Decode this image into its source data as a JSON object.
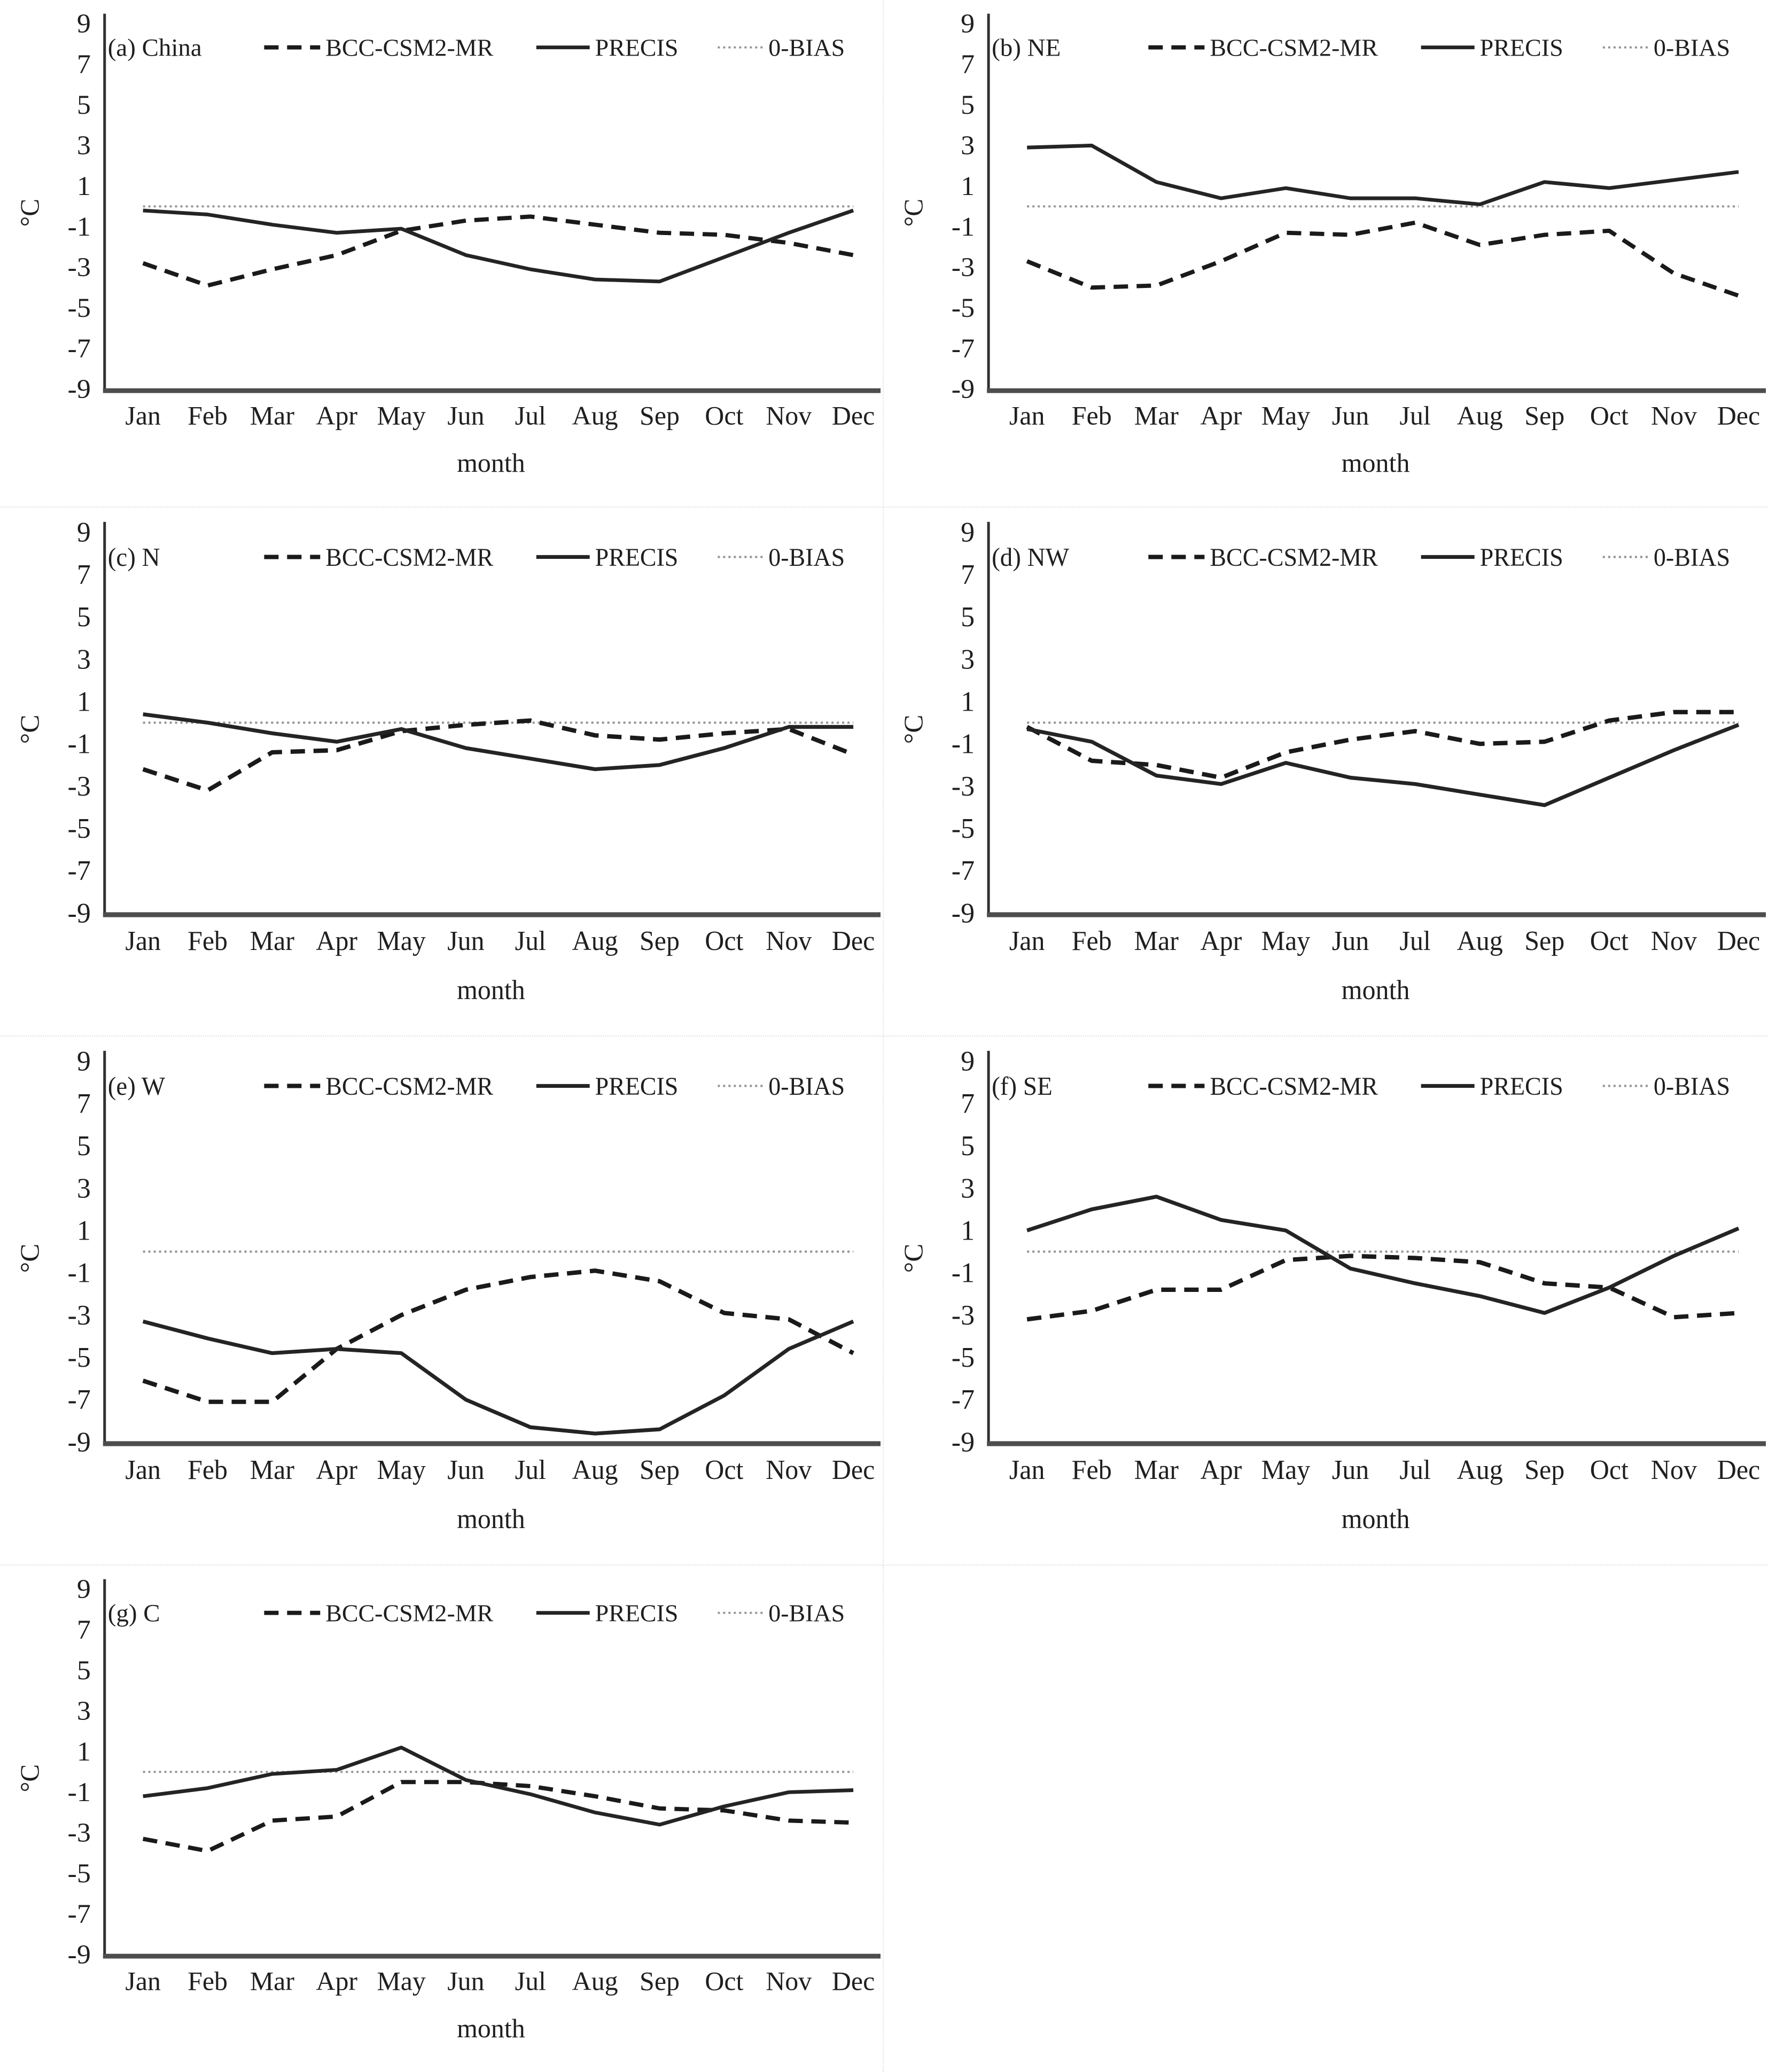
{
  "figure": {
    "ylabel": "°C",
    "xlabel": "month",
    "yticks": [
      9,
      7,
      5,
      3,
      1,
      -1,
      -3,
      -5,
      -7,
      -9
    ],
    "legend_labels": [
      "BCC-CSM2-MR",
      "PRECIS",
      "0-BIAS"
    ],
    "colors": {
      "series_dark": "#1a1a1a",
      "solid_line": "#242424",
      "zero_bias_gray": "#949494",
      "axis_gray": "#4d4d4d",
      "text_dark": "#1f1f1f",
      "cell_border": "#e2e2e2"
    }
  },
  "chart_data": [
    {
      "type": "line",
      "title": "(a) China",
      "xlabel": "month",
      "ylabel": "°C",
      "ylim": [
        -9,
        9
      ],
      "yticks": [
        9,
        7,
        5,
        3,
        1,
        -1,
        -3,
        -5,
        -7,
        -9
      ],
      "legend_position": "top",
      "grid": false,
      "categories": [
        "Jan",
        "Feb",
        "Mar",
        "Apr",
        "May",
        "Jun",
        "Jul",
        "Aug",
        "Sep",
        "Oct",
        "Nov",
        "Dec"
      ],
      "series": [
        {
          "name": "BCC-CSM2-MR",
          "style": "dashed",
          "values": [
            -2.8,
            -3.9,
            -3.1,
            -2.4,
            -1.2,
            -0.7,
            -0.5,
            -0.9,
            -1.3,
            -1.4,
            -1.8,
            -2.4
          ]
        },
        {
          "name": "PRECIS",
          "style": "solid",
          "values": [
            -0.2,
            -0.4,
            -0.9,
            -1.3,
            -1.1,
            -2.4,
            -3.1,
            -3.6,
            -3.7,
            -2.5,
            -1.3,
            -0.2
          ]
        },
        {
          "name": "0-BIAS",
          "style": "dotted",
          "values": [
            0,
            0,
            0,
            0,
            0,
            0,
            0,
            0,
            0,
            0,
            0,
            0
          ]
        }
      ]
    },
    {
      "type": "line",
      "title": "(b) NE",
      "xlabel": "month",
      "ylabel": "°C",
      "ylim": [
        -9,
        9
      ],
      "yticks": [
        9,
        7,
        5,
        3,
        1,
        -1,
        -3,
        -5,
        -7,
        -9
      ],
      "legend_position": "top",
      "grid": false,
      "categories": [
        "Jan",
        "Feb",
        "Mar",
        "Apr",
        "May",
        "Jun",
        "Jul",
        "Aug",
        "Sep",
        "Oct",
        "Nov",
        "Dec"
      ],
      "series": [
        {
          "name": "BCC-CSM2-MR",
          "style": "dashed",
          "values": [
            -2.7,
            -4.0,
            -3.9,
            -2.7,
            -1.3,
            -1.4,
            -0.8,
            -1.9,
            -1.4,
            -1.2,
            -3.3,
            -4.4
          ]
        },
        {
          "name": "PRECIS",
          "style": "solid",
          "values": [
            2.9,
            3.0,
            1.2,
            0.4,
            0.9,
            0.4,
            0.4,
            0.1,
            1.2,
            0.9,
            1.3,
            1.7
          ]
        },
        {
          "name": "0-BIAS",
          "style": "dotted",
          "values": [
            0,
            0,
            0,
            0,
            0,
            0,
            0,
            0,
            0,
            0,
            0,
            0
          ]
        }
      ]
    },
    {
      "type": "line",
      "title": "(c) N",
      "xlabel": "month",
      "ylabel": "°C",
      "ylim": [
        -9,
        9
      ],
      "yticks": [
        9,
        7,
        5,
        3,
        1,
        -1,
        -3,
        -5,
        -7,
        -9
      ],
      "legend_position": "top",
      "grid": false,
      "categories": [
        "Jan",
        "Feb",
        "Mar",
        "Apr",
        "May",
        "Jun",
        "Jul",
        "Aug",
        "Sep",
        "Oct",
        "Nov",
        "Dec"
      ],
      "series": [
        {
          "name": "BCC-CSM2-MR",
          "style": "dashed",
          "values": [
            -2.2,
            -3.2,
            -1.4,
            -1.3,
            -0.4,
            -0.1,
            0.1,
            -0.6,
            -0.8,
            -0.5,
            -0.3,
            -1.5
          ]
        },
        {
          "name": "PRECIS",
          "style": "solid",
          "values": [
            0.4,
            0.0,
            -0.5,
            -0.9,
            -0.3,
            -1.2,
            -1.7,
            -2.2,
            -2.0,
            -1.2,
            -0.2,
            -0.2
          ]
        },
        {
          "name": "0-BIAS",
          "style": "dotted",
          "values": [
            0,
            0,
            0,
            0,
            0,
            0,
            0,
            0,
            0,
            0,
            0,
            0
          ]
        }
      ]
    },
    {
      "type": "line",
      "title": "(d) NW",
      "xlabel": "month",
      "ylabel": "°C",
      "ylim": [
        -9,
        9
      ],
      "yticks": [
        9,
        7,
        5,
        3,
        1,
        -1,
        -3,
        -5,
        -7,
        -9
      ],
      "legend_position": "top",
      "grid": false,
      "categories": [
        "Jan",
        "Feb",
        "Mar",
        "Apr",
        "May",
        "Jun",
        "Jul",
        "Aug",
        "Sep",
        "Oct",
        "Nov",
        "Dec"
      ],
      "series": [
        {
          "name": "BCC-CSM2-MR",
          "style": "dashed",
          "values": [
            -0.2,
            -1.8,
            -2.0,
            -2.6,
            -1.4,
            -0.8,
            -0.4,
            -1.0,
            -0.9,
            0.1,
            0.5,
            0.5
          ]
        },
        {
          "name": "PRECIS",
          "style": "solid",
          "values": [
            -0.3,
            -0.9,
            -2.5,
            -2.9,
            -1.9,
            -2.6,
            -2.9,
            -3.4,
            -3.9,
            -2.6,
            -1.3,
            -0.1
          ]
        },
        {
          "name": "0-BIAS",
          "style": "dotted",
          "values": [
            0,
            0,
            0,
            0,
            0,
            0,
            0,
            0,
            0,
            0,
            0,
            0
          ]
        }
      ]
    },
    {
      "type": "line",
      "title": "(e) W",
      "xlabel": "month",
      "ylabel": "°C",
      "ylim": [
        -9,
        9
      ],
      "yticks": [
        9,
        7,
        5,
        3,
        1,
        -1,
        -3,
        -5,
        -7,
        -9
      ],
      "legend_position": "top",
      "grid": false,
      "categories": [
        "Jan",
        "Feb",
        "Mar",
        "Apr",
        "May",
        "Jun",
        "Jul",
        "Aug",
        "Sep",
        "Oct",
        "Nov",
        "Dec"
      ],
      "series": [
        {
          "name": "BCC-CSM2-MR",
          "style": "dashed",
          "values": [
            -6.1,
            -7.1,
            -7.1,
            -4.6,
            -3.0,
            -1.8,
            -1.2,
            -0.9,
            -1.4,
            -2.9,
            -3.2,
            -4.8
          ]
        },
        {
          "name": "PRECIS",
          "style": "solid",
          "values": [
            -3.3,
            -4.1,
            -4.8,
            -4.6,
            -4.8,
            -7.0,
            -8.3,
            -8.6,
            -8.4,
            -6.8,
            -4.6,
            -3.3
          ]
        },
        {
          "name": "0-BIAS",
          "style": "dotted",
          "values": [
            0,
            0,
            0,
            0,
            0,
            0,
            0,
            0,
            0,
            0,
            0,
            0
          ]
        }
      ]
    },
    {
      "type": "line",
      "title": "(f) SE",
      "xlabel": "month",
      "ylabel": "°C",
      "ylim": [
        -9,
        9
      ],
      "yticks": [
        9,
        7,
        5,
        3,
        1,
        -1,
        -3,
        -5,
        -7,
        -9
      ],
      "legend_position": "top",
      "grid": false,
      "categories": [
        "Jan",
        "Feb",
        "Mar",
        "Apr",
        "May",
        "Jun",
        "Jul",
        "Aug",
        "Sep",
        "Oct",
        "Nov",
        "Dec"
      ],
      "series": [
        {
          "name": "BCC-CSM2-MR",
          "style": "dashed",
          "values": [
            -3.2,
            -2.8,
            -1.8,
            -1.8,
            -0.4,
            -0.2,
            -0.3,
            -0.5,
            -1.5,
            -1.7,
            -3.1,
            -2.9
          ]
        },
        {
          "name": "PRECIS",
          "style": "solid",
          "values": [
            1.0,
            2.0,
            2.6,
            1.5,
            1.0,
            -0.8,
            -1.5,
            -2.1,
            -2.9,
            -1.7,
            -0.2,
            1.1
          ]
        },
        {
          "name": "0-BIAS",
          "style": "dotted",
          "values": [
            0,
            0,
            0,
            0,
            0,
            0,
            0,
            0,
            0,
            0,
            0,
            0
          ]
        }
      ]
    },
    {
      "type": "line",
      "title": "(g) C",
      "xlabel": "month",
      "ylabel": "°C",
      "ylim": [
        -9,
        9
      ],
      "yticks": [
        9,
        7,
        5,
        3,
        1,
        -1,
        -3,
        -5,
        -7,
        -9
      ],
      "legend_position": "top",
      "grid": false,
      "categories": [
        "Jan",
        "Feb",
        "Mar",
        "Apr",
        "May",
        "Jun",
        "Jul",
        "Aug",
        "Sep",
        "Oct",
        "Nov",
        "Dec"
      ],
      "series": [
        {
          "name": "BCC-CSM2-MR",
          "style": "dashed",
          "values": [
            -3.3,
            -3.9,
            -2.4,
            -2.2,
            -0.5,
            -0.5,
            -0.7,
            -1.2,
            -1.8,
            -1.9,
            -2.4,
            -2.5
          ]
        },
        {
          "name": "PRECIS",
          "style": "solid",
          "values": [
            -1.2,
            -0.8,
            -0.1,
            0.1,
            1.2,
            -0.4,
            -1.1,
            -2.0,
            -2.6,
            -1.7,
            -1.0,
            -0.9
          ]
        },
        {
          "name": "0-BIAS",
          "style": "dotted",
          "values": [
            0,
            0,
            0,
            0,
            0,
            0,
            0,
            0,
            0,
            0,
            0,
            0
          ]
        }
      ]
    }
  ]
}
